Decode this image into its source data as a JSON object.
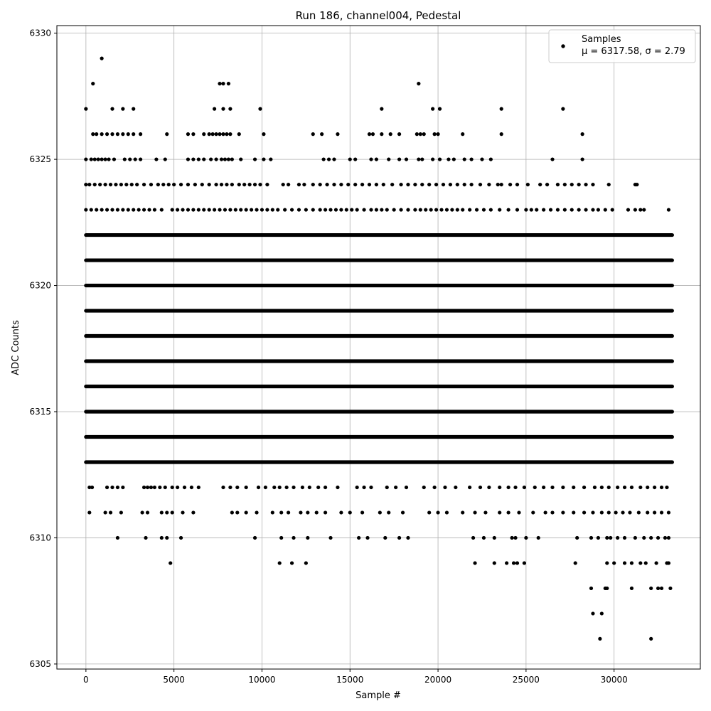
{
  "chart_data": {
    "type": "scatter",
    "title": "Run 186, channel004, Pedestal",
    "xlabel": "Sample #",
    "ylabel": "ADC Counts",
    "xlim": [
      -1650,
      34900
    ],
    "ylim": [
      6304.8,
      6330.3
    ],
    "x_ticks": [
      0,
      5000,
      10000,
      15000,
      20000,
      25000,
      30000
    ],
    "y_ticks": [
      6305,
      6310,
      6315,
      6320,
      6325,
      6330
    ],
    "grid": true,
    "legend_position": "top-right",
    "marker_color": "#000000",
    "series": [
      {
        "name": "Samples",
        "stats_label": "μ = 6317.58, σ = 2.79",
        "mean": 6317.58,
        "sigma": 2.79,
        "n_samples": 33300,
        "level_bands": [
          {
            "y": 6313,
            "x_range": [
              0,
              33300
            ]
          },
          {
            "y": 6314,
            "x_range": [
              0,
              33300
            ]
          },
          {
            "y": 6315,
            "x_range": [
              0,
              33300
            ]
          },
          {
            "y": 6316,
            "x_range": [
              0,
              33300
            ]
          },
          {
            "y": 6317,
            "x_range": [
              0,
              33300
            ]
          },
          {
            "y": 6318,
            "x_range": [
              0,
              33300
            ]
          },
          {
            "y": 6319,
            "x_range": [
              0,
              33300
            ]
          },
          {
            "y": 6320,
            "x_range": [
              0,
              33300
            ]
          },
          {
            "y": 6321,
            "x_range": [
              0,
              33300
            ]
          },
          {
            "y": 6322,
            "x_range": [
              0,
              33300
            ]
          }
        ],
        "sparse_levels": [
          {
            "y": 6312,
            "x": [
              200,
              350,
              1200,
              1500,
              1800,
              2100,
              3300,
              3500,
              3700,
              3900,
              4200,
              4500,
              4900,
              5200,
              5600,
              6000,
              6400,
              7800,
              8200,
              8600,
              9100,
              9800,
              10200,
              10700,
              11000,
              11400,
              11800,
              12300,
              12700,
              13200,
              13600,
              14300,
              15400,
              15800,
              16200,
              17100,
              17600,
              18200,
              19200,
              19800,
              20400,
              21000,
              21800,
              22400,
              22900,
              23500,
              24000,
              24400,
              24900,
              25500,
              26000,
              26500,
              27100,
              27700,
              28300,
              28900,
              29300,
              29700,
              30200,
              30600,
              31000,
              31500,
              31900,
              32300,
              32700,
              33000
            ]
          },
          {
            "y": 6311,
            "x": [
              200,
              1100,
              1400,
              2000,
              3200,
              3500,
              4300,
              4600,
              4900,
              5500,
              6100,
              8300,
              8600,
              9100,
              9700,
              10600,
              11100,
              11500,
              12200,
              12600,
              13100,
              13600,
              14500,
              15000,
              15700,
              16700,
              17200,
              18000,
              19500,
              20000,
              20500,
              21400,
              22100,
              22700,
              23500,
              24000,
              24600,
              25400,
              26100,
              26500,
              27100,
              27700,
              28300,
              28800,
              29300,
              29700,
              30100,
              30500,
              30900,
              31400,
              31900,
              32300,
              32700,
              33100
            ]
          },
          {
            "y": 6310,
            "x": [
              1800,
              3400,
              4300,
              4600,
              5400,
              9600,
              11100,
              11800,
              12600,
              13900,
              15500,
              16000,
              17000,
              17800,
              18300,
              22000,
              22600,
              23200,
              24200,
              24400,
              25000,
              25700,
              27900,
              28700,
              29100,
              29600,
              29800,
              30200,
              30600,
              31200,
              31700,
              32100,
              32500,
              32900,
              33100
            ]
          },
          {
            "y": 6309,
            "x": [
              4800,
              11000,
              11700,
              12500,
              22100,
              23200,
              23900,
              24300,
              24500,
              24900,
              27800,
              29600,
              30000,
              30600,
              31000,
              31500,
              31800,
              32400,
              33000,
              33100
            ]
          },
          {
            "y": 6308,
            "x": [
              28700,
              29500,
              29600,
              31000,
              32100,
              32500,
              32700,
              33200
            ]
          },
          {
            "y": 6307,
            "x": [
              28800,
              29300
            ]
          },
          {
            "y": 6306,
            "x": [
              29200,
              32100
            ]
          },
          {
            "y": 6323,
            "x": [
              0,
              300,
              600,
              900,
              1200,
              1500,
              1800,
              2100,
              2400,
              2700,
              3000,
              3300,
              3600,
              3900,
              4300,
              4900,
              5200,
              5500,
              5800,
              6100,
              6400,
              6700,
              7000,
              7300,
              7600,
              7900,
              8200,
              8500,
              8800,
              9100,
              9400,
              9700,
              10000,
              10300,
              10600,
              10900,
              11300,
              11700,
              12100,
              12500,
              12900,
              13300,
              13600,
              13900,
              14200,
              14500,
              14800,
              15100,
              15400,
              15800,
              16200,
              16500,
              16800,
              17100,
              17500,
              17900,
              18300,
              18700,
              19000,
              19300,
              19600,
              19900,
              20200,
              20500,
              20800,
              21100,
              21400,
              21800,
              22200,
              22600,
              23000,
              23500,
              24000,
              24500,
              25000,
              25300,
              25600,
              26000,
              26400,
              26800,
              27200,
              27600,
              28000,
              28400,
              28800,
              29100,
              29500,
              29900,
              30800,
              31200,
              31500,
              31700,
              33100
            ]
          },
          {
            "y": 6324,
            "x": [
              0,
              200,
              500,
              800,
              1100,
              1400,
              1700,
              2000,
              2300,
              2600,
              2900,
              3300,
              3700,
              4100,
              4400,
              4700,
              5000,
              5400,
              5800,
              6200,
              6600,
              7000,
              7400,
              7700,
              8000,
              8300,
              8700,
              9000,
              9300,
              9600,
              9900,
              10300,
              11200,
              11500,
              12100,
              12400,
              12900,
              13300,
              13700,
              14100,
              14500,
              14900,
              15300,
              15700,
              16100,
              16500,
              16900,
              17400,
              17900,
              18300,
              18700,
              19100,
              19500,
              19900,
              20300,
              20700,
              21100,
              21500,
              21900,
              22400,
              22900,
              23400,
              23600,
              24100,
              24500,
              25100,
              25800,
              26200,
              26800,
              27200,
              27600,
              28000,
              28400,
              28800,
              29700,
              31200,
              31300
            ]
          },
          {
            "y": 6325,
            "x": [
              0,
              300,
              500,
              700,
              900,
              1100,
              1300,
              1600,
              2200,
              2500,
              2800,
              3100,
              4000,
              4500,
              5800,
              6100,
              6400,
              6700,
              7100,
              7400,
              7700,
              7900,
              8100,
              8300,
              8800,
              9600,
              10100,
              10500,
              13500,
              13800,
              14100,
              15000,
              15300,
              16200,
              16500,
              17200,
              17800,
              18200,
              18900,
              19100,
              19700,
              20100,
              20600,
              20900,
              21500,
              21900,
              22500,
              23000,
              26500,
              28200
            ]
          },
          {
            "y": 6326,
            "x": [
              400,
              600,
              900,
              1200,
              1500,
              1800,
              2100,
              2400,
              2700,
              3100,
              4600,
              5800,
              6100,
              6700,
              7000,
              7200,
              7400,
              7600,
              7800,
              8000,
              8200,
              8700,
              10100,
              12900,
              13400,
              14300,
              16100,
              16300,
              16800,
              17300,
              17800,
              18800,
              19000,
              19200,
              19800,
              20000,
              21400,
              23600,
              28200
            ]
          },
          {
            "y": 6327,
            "x": [
              0,
              1500,
              2100,
              2700,
              7300,
              7800,
              8200,
              9900,
              16800,
              19700,
              20100,
              23600,
              27100
            ]
          },
          {
            "y": 6328,
            "x": [
              400,
              7600,
              7800,
              8100,
              18900
            ]
          },
          {
            "y": 6329,
            "x": [
              900
            ]
          }
        ]
      }
    ]
  }
}
